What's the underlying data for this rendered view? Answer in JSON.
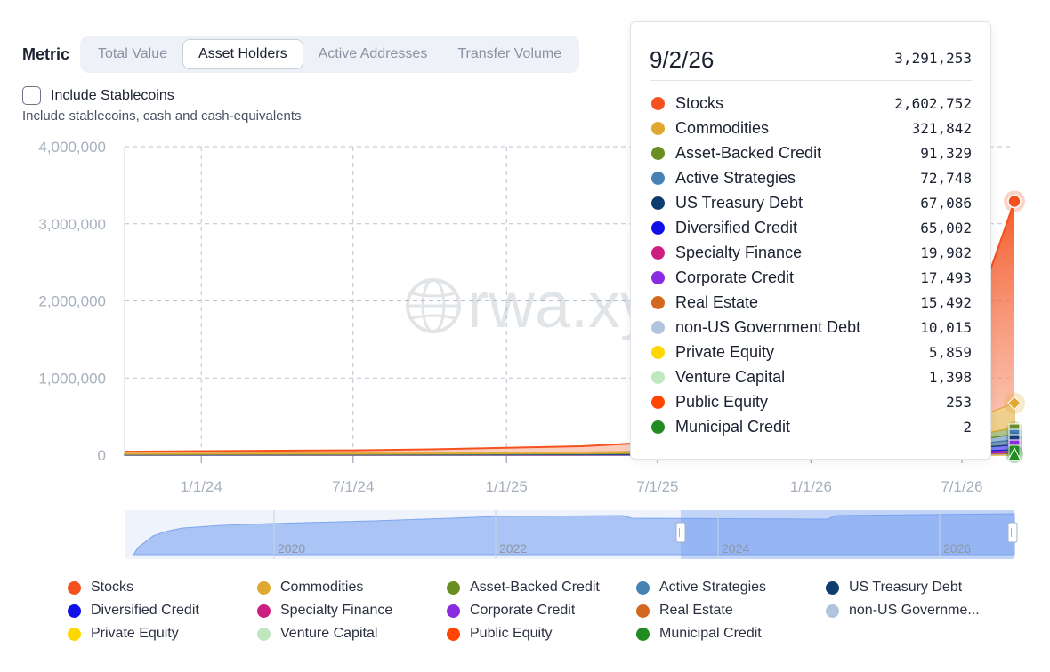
{
  "controls": {
    "metric_label": "Metric",
    "tabs": [
      {
        "label": "Total Value",
        "active": false
      },
      {
        "label": "Asset Holders",
        "active": true
      },
      {
        "label": "Active Addresses",
        "active": false
      },
      {
        "label": "Transfer Volume",
        "active": false
      }
    ],
    "stablecoins_label": "Include Stablecoins",
    "stablecoins_checked": false,
    "stablecoins_desc": "Include stablecoins, cash and cash-equivalents"
  },
  "watermark": "rwa.xyz",
  "chart_data": {
    "type": "area",
    "stacked": true,
    "title": "",
    "xlabel": "",
    "ylabel": "",
    "ylim": [
      0,
      4000000
    ],
    "y_ticks": [
      "4,000,000",
      "3,000,000",
      "2,000,000",
      "1,000,000",
      "0"
    ],
    "x_ticks": [
      "1/1/24",
      "7/1/24",
      "1/1/25",
      "7/1/25",
      "1/1/26",
      "7/1/26"
    ],
    "grid": true,
    "series": [
      {
        "name": "Stocks",
        "color": "#f4511e",
        "last_value": 2602752
      },
      {
        "name": "Commodities",
        "color": "#e0a82e",
        "last_value": 321842
      },
      {
        "name": "Asset-Backed Credit",
        "color": "#6b8e23",
        "last_value": 91329
      },
      {
        "name": "Active Strategies",
        "color": "#4682b4",
        "last_value": 72748
      },
      {
        "name": "US Treasury Debt",
        "color": "#0d3c6e",
        "last_value": 67086
      },
      {
        "name": "Diversified Credit",
        "color": "#1010e8",
        "last_value": 65002
      },
      {
        "name": "Specialty Finance",
        "color": "#cc1f7f",
        "last_value": 19982
      },
      {
        "name": "Corporate Credit",
        "color": "#8a2be2",
        "last_value": 17493
      },
      {
        "name": "Real Estate",
        "color": "#d2691e",
        "last_value": 15492
      },
      {
        "name": "non-US Government Debt",
        "color": "#b0c4de",
        "last_value": 10015
      },
      {
        "name": "Private Equity",
        "color": "#ffd700",
        "last_value": 5859
      },
      {
        "name": "Venture Capital",
        "color": "#bfe8c0",
        "last_value": 1398
      },
      {
        "name": "Public Equity",
        "color": "#ff4500",
        "last_value": 253
      },
      {
        "name": "Municipal Credit",
        "color": "#228b22",
        "last_value": 2
      }
    ],
    "total_points": [
      {
        "date": "2023-10-01",
        "value": 45000
      },
      {
        "date": "2024-01-01",
        "value": 52000
      },
      {
        "date": "2024-04-01",
        "value": 58000
      },
      {
        "date": "2024-07-01",
        "value": 62000
      },
      {
        "date": "2024-10-01",
        "value": 75000
      },
      {
        "date": "2025-01-01",
        "value": 95000
      },
      {
        "date": "2025-04-01",
        "value": 115000
      },
      {
        "date": "2025-06-01",
        "value": 150000
      },
      {
        "date": "2025-07-01",
        "value": 170000
      },
      {
        "date": "2026-07-01",
        "value": 1500000
      },
      {
        "date": "2026-08-01",
        "value": 2300000
      },
      {
        "date": "2026-09-02",
        "value": 3291253
      }
    ],
    "tooltip": {
      "date": "9/2/26",
      "total": "3,291,253"
    },
    "navigator": {
      "ticks": [
        "2020",
        "2022",
        "2024",
        "2026"
      ],
      "selection": [
        "2024",
        "2026"
      ]
    }
  },
  "tooltip_rows": [
    {
      "name": "Stocks",
      "value": "2,602,752",
      "color": "#f4511e"
    },
    {
      "name": "Commodities",
      "value": "321,842",
      "color": "#e0a82e"
    },
    {
      "name": "Asset-Backed Credit",
      "value": "91,329",
      "color": "#6b8e23"
    },
    {
      "name": "Active Strategies",
      "value": "72,748",
      "color": "#4682b4"
    },
    {
      "name": "US Treasury Debt",
      "value": "67,086",
      "color": "#0d3c6e"
    },
    {
      "name": "Diversified Credit",
      "value": "65,002",
      "color": "#1010e8"
    },
    {
      "name": "Specialty Finance",
      "value": "19,982",
      "color": "#cc1f7f"
    },
    {
      "name": "Corporate Credit",
      "value": "17,493",
      "color": "#8a2be2"
    },
    {
      "name": "Real Estate",
      "value": "15,492",
      "color": "#d2691e"
    },
    {
      "name": "non-US Government Debt",
      "value": "10,015",
      "color": "#b0c4de"
    },
    {
      "name": "Private Equity",
      "value": "5,859",
      "color": "#ffd700"
    },
    {
      "name": "Venture Capital",
      "value": "1,398",
      "color": "#bfe8c0"
    },
    {
      "name": "Public Equity",
      "value": "253",
      "color": "#ff4500"
    },
    {
      "name": "Municipal Credit",
      "value": "2",
      "color": "#228b22"
    }
  ],
  "legend": [
    {
      "name": "Stocks",
      "color": "#f4511e"
    },
    {
      "name": "Commodities",
      "color": "#e0a82e"
    },
    {
      "name": "Asset-Backed Credit",
      "color": "#6b8e23"
    },
    {
      "name": "Active Strategies",
      "color": "#4682b4"
    },
    {
      "name": "US Treasury Debt",
      "color": "#0d3c6e"
    },
    {
      "name": "Diversified Credit",
      "color": "#1010e8"
    },
    {
      "name": "Specialty Finance",
      "color": "#cc1f7f"
    },
    {
      "name": "Corporate Credit",
      "color": "#8a2be2"
    },
    {
      "name": "Real Estate",
      "color": "#d2691e"
    },
    {
      "name": "non-US Governme...",
      "color": "#b0c4de"
    },
    {
      "name": "Private Equity",
      "color": "#ffd700"
    },
    {
      "name": "Venture Capital",
      "color": "#bfe8c0"
    },
    {
      "name": "Public Equity",
      "color": "#ff4500"
    },
    {
      "name": "Municipal Credit",
      "color": "#228b22"
    }
  ]
}
